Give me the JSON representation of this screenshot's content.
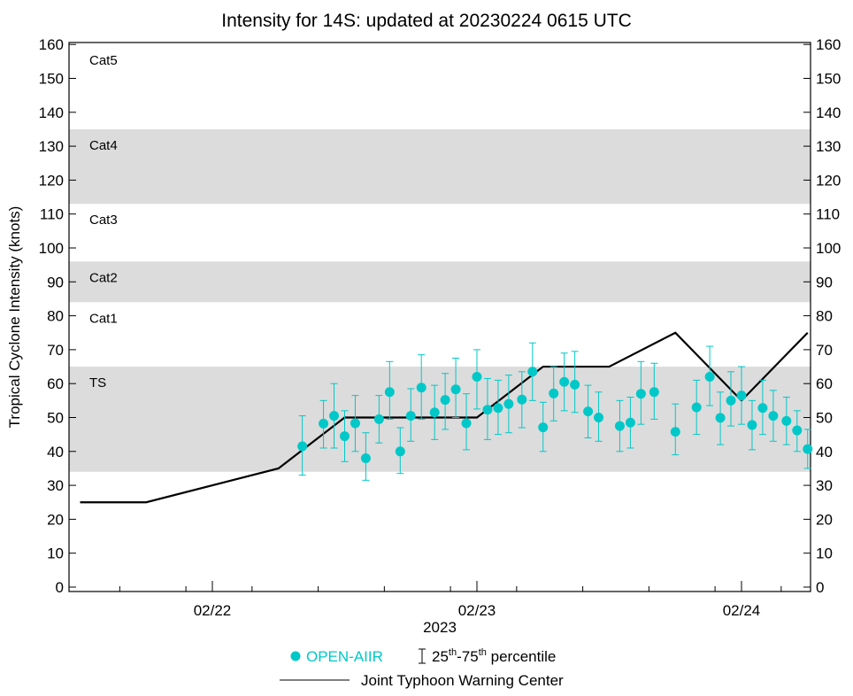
{
  "chart_data": {
    "type": "scatter",
    "title": "Intensity for 14S: updated at 20230224 0615 UTC",
    "ylabel": "Tropical Cyclone Intensity (knots)",
    "xlabel": "2023",
    "ylim": [
      0,
      160
    ],
    "yticks": [
      0,
      10,
      20,
      30,
      40,
      50,
      60,
      70,
      80,
      90,
      100,
      110,
      120,
      130,
      140,
      150,
      160
    ],
    "xlim_days": [
      -0.6,
      2.25
    ],
    "xticks": [
      {
        "day": 0,
        "label": "02/22"
      },
      {
        "day": 1,
        "label": "02/23"
      },
      {
        "day": 2,
        "label": "02/24"
      }
    ],
    "minor_tick_step_days": 0.25,
    "categories": [
      {
        "label": "TS",
        "lo": 34,
        "hi": 65,
        "shaded": true
      },
      {
        "label": "Cat1",
        "lo": 65,
        "hi": 84,
        "shaded": false
      },
      {
        "label": "Cat2",
        "lo": 84,
        "hi": 96,
        "shaded": true
      },
      {
        "label": "Cat3",
        "lo": 96,
        "hi": 113,
        "shaded": false
      },
      {
        "label": "Cat4",
        "lo": 113,
        "hi": 135,
        "shaded": true
      },
      {
        "label": "Cat5",
        "lo": 135,
        "hi": 160,
        "shaded": false
      }
    ],
    "series": [
      {
        "name": "OPEN-AIIR",
        "kind": "points_with_errorbars",
        "color": "#00c8c8",
        "points": [
          {
            "x": 0.34,
            "y": 41.5,
            "lo": 33,
            "hi": 50.5
          },
          {
            "x": 0.42,
            "y": 48.2,
            "lo": 41,
            "hi": 55
          },
          {
            "x": 0.46,
            "y": 50.5,
            "lo": 41,
            "hi": 60
          },
          {
            "x": 0.5,
            "y": 44.5,
            "lo": 37,
            "hi": 52
          },
          {
            "x": 0.54,
            "y": 48.3,
            "lo": 40,
            "hi": 56.5
          },
          {
            "x": 0.58,
            "y": 38,
            "lo": 31.5,
            "hi": 45.5
          },
          {
            "x": 0.63,
            "y": 49.5,
            "lo": 42.5,
            "hi": 56.5
          },
          {
            "x": 0.67,
            "y": 57.5,
            "lo": 49.5,
            "hi": 66.5
          },
          {
            "x": 0.71,
            "y": 40,
            "lo": 33.5,
            "hi": 47
          },
          {
            "x": 0.75,
            "y": 50.5,
            "lo": 43,
            "hi": 58.5
          },
          {
            "x": 0.79,
            "y": 58.8,
            "lo": 49.5,
            "hi": 68.5
          },
          {
            "x": 0.84,
            "y": 51.5,
            "lo": 43.5,
            "hi": 59.5
          },
          {
            "x": 0.88,
            "y": 55.2,
            "lo": 46.5,
            "hi": 63
          },
          {
            "x": 0.92,
            "y": 58.3,
            "lo": 50,
            "hi": 67.5
          },
          {
            "x": 0.96,
            "y": 48.3,
            "lo": 40.5,
            "hi": 57
          },
          {
            "x": 1.0,
            "y": 62,
            "lo": 52.5,
            "hi": 70
          },
          {
            "x": 1.04,
            "y": 52.3,
            "lo": 43.5,
            "hi": 61.5
          },
          {
            "x": 1.08,
            "y": 52.8,
            "lo": 45,
            "hi": 61
          },
          {
            "x": 1.12,
            "y": 54,
            "lo": 45.5,
            "hi": 62.5
          },
          {
            "x": 1.17,
            "y": 55.3,
            "lo": 47,
            "hi": 63.5
          },
          {
            "x": 1.21,
            "y": 63.5,
            "lo": 55,
            "hi": 72
          },
          {
            "x": 1.25,
            "y": 47.1,
            "lo": 40,
            "hi": 54.5
          },
          {
            "x": 1.29,
            "y": 57.1,
            "lo": 49,
            "hi": 65
          },
          {
            "x": 1.33,
            "y": 60.5,
            "lo": 52,
            "hi": 69
          },
          {
            "x": 1.37,
            "y": 59.7,
            "lo": 51.5,
            "hi": 69.5
          },
          {
            "x": 1.42,
            "y": 51.8,
            "lo": 44,
            "hi": 59.5
          },
          {
            "x": 1.46,
            "y": 50,
            "lo": 43,
            "hi": 57.5
          },
          {
            "x": 1.54,
            "y": 47.5,
            "lo": 40,
            "hi": 55
          },
          {
            "x": 1.58,
            "y": 48.5,
            "lo": 41,
            "hi": 56
          },
          {
            "x": 1.62,
            "y": 57,
            "lo": 48,
            "hi": 66.5
          },
          {
            "x": 1.67,
            "y": 57.5,
            "lo": 49.5,
            "hi": 66
          },
          {
            "x": 1.75,
            "y": 45.8,
            "lo": 39,
            "hi": 54
          },
          {
            "x": 1.83,
            "y": 53,
            "lo": 45,
            "hi": 61
          },
          {
            "x": 1.88,
            "y": 62,
            "lo": 53.5,
            "hi": 71
          },
          {
            "x": 1.92,
            "y": 49.9,
            "lo": 42,
            "hi": 57.5
          },
          {
            "x": 1.96,
            "y": 55,
            "lo": 47.5,
            "hi": 63.5
          },
          {
            "x": 2.0,
            "y": 56.5,
            "lo": 48,
            "hi": 65
          },
          {
            "x": 2.04,
            "y": 47.8,
            "lo": 40.5,
            "hi": 55
          },
          {
            "x": 2.08,
            "y": 52.8,
            "lo": 45,
            "hi": 61
          },
          {
            "x": 2.12,
            "y": 50.5,
            "lo": 43,
            "hi": 58
          },
          {
            "x": 2.17,
            "y": 49,
            "lo": 42,
            "hi": 56
          },
          {
            "x": 2.21,
            "y": 46.2,
            "lo": 40,
            "hi": 52
          },
          {
            "x": 2.25,
            "y": 40.7,
            "lo": 35,
            "hi": 46.5
          }
        ]
      },
      {
        "name": "Joint Typhoon Warning Center",
        "kind": "line",
        "color": "#000000",
        "points": [
          {
            "x": -0.5,
            "y": 25
          },
          {
            "x": -0.25,
            "y": 25
          },
          {
            "x": 0.25,
            "y": 35
          },
          {
            "x": 0.5,
            "y": 50
          },
          {
            "x": 1.0,
            "y": 50
          },
          {
            "x": 1.25,
            "y": 65
          },
          {
            "x": 1.5,
            "y": 65
          },
          {
            "x": 1.75,
            "y": 75
          },
          {
            "x": 2.0,
            "y": 55
          },
          {
            "x": 2.25,
            "y": 75
          }
        ]
      }
    ],
    "legend": {
      "points_label": "OPEN-AIIR",
      "percentile_lo": "25",
      "percentile_hi": "75",
      "percentile_suffix": "th",
      "percentile_word": "percentile",
      "line_label": "Joint Typhoon Warning Center",
      "placement": "bottom"
    }
  }
}
